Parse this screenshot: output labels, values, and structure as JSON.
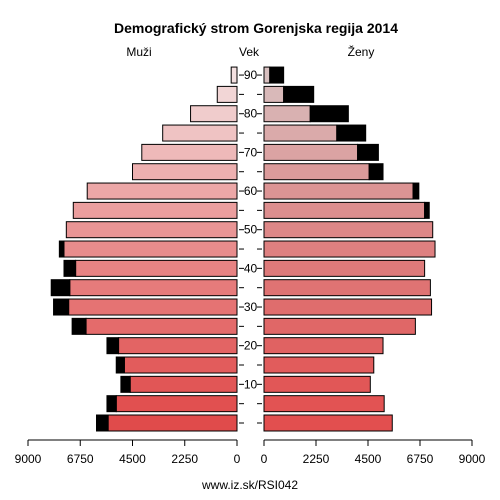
{
  "chart_data": {
    "type": "bar",
    "subtype": "population-pyramid",
    "title": "Demografický strom Gorenjska regija 2014",
    "left_label": "Muži",
    "center_label": "Vek",
    "right_label": "Ženy",
    "footer": "www.iz.sk/RSI042",
    "xlim": [
      0,
      9000
    ],
    "x_ticks": [
      0,
      2250,
      4500,
      6750,
      9000
    ],
    "x_tick_labels_left": [
      "9000",
      "6750",
      "4500",
      "2250",
      "0"
    ],
    "x_tick_labels_right": [
      "0",
      "2250",
      "4500",
      "6750",
      "9000"
    ],
    "y_tick_labels": [
      "10",
      "20",
      "30",
      "40",
      "50",
      "60",
      "70",
      "80",
      "90"
    ],
    "categories": [
      "0-4",
      "5-9",
      "10-14",
      "15-19",
      "20-24",
      "25-29",
      "30-34",
      "35-39",
      "40-44",
      "45-49",
      "50-54",
      "55-59",
      "60-64",
      "65-69",
      "70-74",
      "75-79",
      "80-84",
      "85-89",
      "90+"
    ],
    "series": [
      {
        "side": "male",
        "values": [
          5550,
          5200,
          4600,
          4850,
          5100,
          6500,
          7250,
          7200,
          6950,
          7450,
          7350,
          7050,
          6450,
          4500,
          4100,
          3200,
          2000,
          850,
          250
        ],
        "excess": [
          500,
          400,
          400,
          350,
          500,
          600,
          650,
          800,
          500,
          200,
          0,
          0,
          0,
          0,
          0,
          0,
          0,
          0,
          0
        ]
      },
      {
        "side": "female",
        "values": [
          5550,
          5200,
          4600,
          4750,
          5150,
          6550,
          7250,
          7200,
          6950,
          7400,
          7300,
          6950,
          6450,
          4550,
          4050,
          3150,
          2000,
          850,
          250
        ],
        "excess": [
          0,
          0,
          0,
          0,
          0,
          0,
          0,
          0,
          0,
          0,
          0,
          200,
          250,
          600,
          900,
          1250,
          1650,
          1300,
          600
        ]
      }
    ],
    "colors": {
      "male_young": "#e04b4b",
      "male_old": "#f3e0e0",
      "female_young": "#e24f4f",
      "female_old": "#d8c0c0",
      "excess": "#000000"
    }
  }
}
